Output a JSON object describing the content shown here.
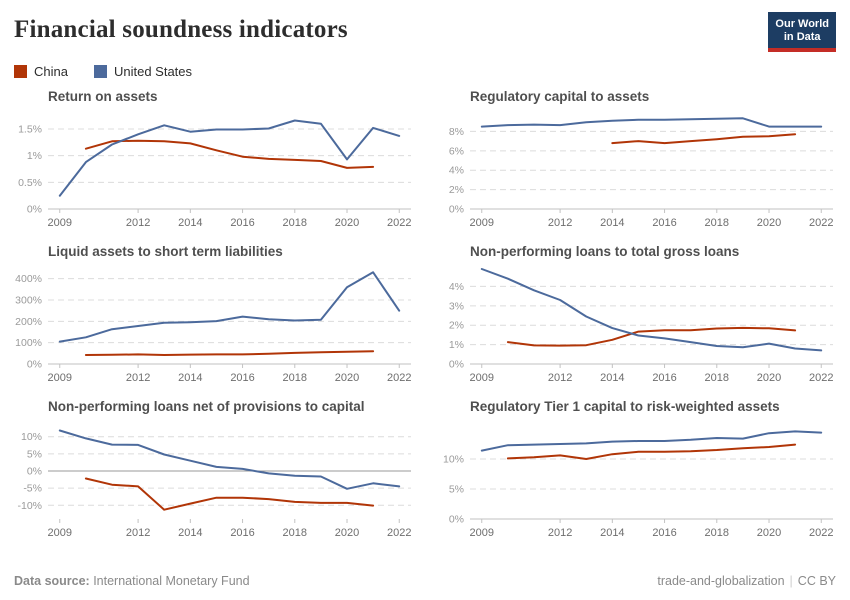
{
  "header": {
    "title": "Financial soundness indicators",
    "logo": {
      "line1": "Our World",
      "line2": "in Data",
      "bg_color": "#1d3d63",
      "accent_color": "#c42d26"
    }
  },
  "legend": {
    "items": [
      {
        "key": "china",
        "label": "China",
        "color": "#b13507"
      },
      {
        "key": "united-states",
        "label": "United States",
        "color": "#4c6a9c"
      }
    ]
  },
  "colors": {
    "china": "#b13507",
    "united_states": "#4c6a9c",
    "gridline": "#dcdcdc",
    "axis": "#c2c2c2",
    "zero_line": "#9a9a9a",
    "ytick_label": "#9a9a9a",
    "xtick_label": "#6e6e6e"
  },
  "chart_data": [
    {
      "type": "line",
      "title": "Return on assets",
      "xlim": [
        2008.55,
        2022.45
      ],
      "xticks": [
        2009,
        2012,
        2014,
        2016,
        2018,
        2020,
        2022
      ],
      "ylim": [
        0,
        1.8
      ],
      "yticks": [
        0,
        0.5,
        1,
        1.5
      ],
      "ytick_labels": [
        "0%",
        "0.5%",
        "1%",
        "1.5%"
      ],
      "zero_solid": false,
      "series": [
        {
          "name": "China",
          "key": "china",
          "color": "#b13507",
          "x": [
            2010,
            2011,
            2012,
            2013,
            2014,
            2015,
            2016,
            2017,
            2018,
            2019,
            2020,
            2021
          ],
          "y": [
            1.13,
            1.27,
            1.28,
            1.27,
            1.23,
            1.1,
            0.98,
            0.94,
            0.92,
            0.9,
            0.77,
            0.79
          ]
        },
        {
          "name": "United States",
          "key": "united-states",
          "color": "#4c6a9c",
          "x": [
            2009,
            2010,
            2011,
            2012,
            2013,
            2014,
            2015,
            2016,
            2017,
            2018,
            2019,
            2020,
            2021,
            2022
          ],
          "y": [
            0.25,
            0.88,
            1.21,
            1.4,
            1.57,
            1.45,
            1.49,
            1.49,
            1.51,
            1.66,
            1.6,
            0.93,
            1.52,
            1.37
          ]
        }
      ]
    },
    {
      "type": "line",
      "title": "Regulatory capital to assets",
      "xlim": [
        2008.55,
        2022.45
      ],
      "xticks": [
        2009,
        2012,
        2014,
        2016,
        2018,
        2020,
        2022
      ],
      "ylim": [
        0,
        9.9
      ],
      "yticks": [
        0,
        2,
        4,
        6,
        8
      ],
      "ytick_labels": [
        "0%",
        "2%",
        "4%",
        "6%",
        "8%"
      ],
      "zero_solid": false,
      "series": [
        {
          "name": "China",
          "key": "china",
          "color": "#b13507",
          "x": [
            2014,
            2015,
            2016,
            2017,
            2018,
            2019,
            2020,
            2021
          ],
          "y": [
            6.8,
            7.0,
            6.8,
            7.0,
            7.2,
            7.45,
            7.5,
            7.7
          ]
        },
        {
          "name": "United States",
          "key": "united-states",
          "color": "#4c6a9c",
          "x": [
            2009,
            2010,
            2011,
            2012,
            2013,
            2014,
            2015,
            2016,
            2017,
            2018,
            2019,
            2020,
            2021,
            2022
          ],
          "y": [
            8.5,
            8.65,
            8.7,
            8.65,
            8.95,
            9.1,
            9.2,
            9.2,
            9.25,
            9.3,
            9.35,
            8.5,
            8.5,
            8.5
          ]
        }
      ]
    },
    {
      "type": "line",
      "title": "Liquid assets to short term liabilities",
      "xlim": [
        2008.55,
        2022.45
      ],
      "xticks": [
        2009,
        2012,
        2014,
        2016,
        2018,
        2020,
        2022
      ],
      "ylim": [
        0,
        450
      ],
      "yticks": [
        0,
        100,
        200,
        300,
        400
      ],
      "ytick_labels": [
        "0%",
        "100%",
        "200%",
        "300%",
        "400%"
      ],
      "zero_solid": false,
      "series": [
        {
          "name": "China",
          "key": "china",
          "color": "#b13507",
          "x": [
            2010,
            2011,
            2012,
            2013,
            2014,
            2015,
            2016,
            2017,
            2018,
            2019,
            2020,
            2021
          ],
          "y": [
            42,
            43,
            45,
            42,
            44,
            45,
            45,
            48,
            52,
            55,
            57,
            60
          ]
        },
        {
          "name": "United States",
          "key": "united-states",
          "color": "#4c6a9c",
          "x": [
            2009,
            2010,
            2011,
            2012,
            2013,
            2014,
            2015,
            2016,
            2017,
            2018,
            2019,
            2020,
            2021,
            2022
          ],
          "y": [
            105,
            125,
            163,
            178,
            193,
            196,
            201,
            222,
            210,
            204,
            207,
            360,
            430,
            250
          ]
        }
      ]
    },
    {
      "type": "line",
      "title": "Non-performing loans to total gross loans",
      "xlim": [
        2008.55,
        2022.45
      ],
      "xticks": [
        2009,
        2012,
        2014,
        2016,
        2018,
        2020,
        2022
      ],
      "ylim": [
        0,
        4.95
      ],
      "yticks": [
        0,
        1,
        2,
        3,
        4
      ],
      "ytick_labels": [
        "0%",
        "1%",
        "2%",
        "3%",
        "4%"
      ],
      "zero_solid": false,
      "series": [
        {
          "name": "China",
          "key": "china",
          "color": "#b13507",
          "x": [
            2010,
            2011,
            2012,
            2013,
            2014,
            2015,
            2016,
            2017,
            2018,
            2019,
            2020,
            2021
          ],
          "y": [
            1.13,
            0.96,
            0.95,
            0.97,
            1.25,
            1.67,
            1.74,
            1.74,
            1.83,
            1.86,
            1.84,
            1.73
          ]
        },
        {
          "name": "United States",
          "key": "united-states",
          "color": "#4c6a9c",
          "x": [
            2009,
            2010,
            2011,
            2012,
            2013,
            2014,
            2015,
            2016,
            2017,
            2018,
            2019,
            2020,
            2021,
            2022
          ],
          "y": [
            4.9,
            4.4,
            3.8,
            3.3,
            2.45,
            1.85,
            1.47,
            1.32,
            1.13,
            0.93,
            0.86,
            1.05,
            0.8,
            0.7
          ]
        }
      ]
    },
    {
      "type": "line",
      "title": "Non-performing loans net of provisions to capital",
      "xlim": [
        2008.55,
        2022.45
      ],
      "xticks": [
        2009,
        2012,
        2014,
        2016,
        2018,
        2020,
        2022
      ],
      "ylim": [
        -14,
        14
      ],
      "yticks": [
        -10,
        -5,
        0,
        5,
        10
      ],
      "ytick_labels": [
        "-10%",
        "-5%",
        "0%",
        "5%",
        "10%"
      ],
      "zero_solid": true,
      "baseline": false,
      "series": [
        {
          "name": "China",
          "key": "china",
          "color": "#b13507",
          "x": [
            2010,
            2011,
            2012,
            2013,
            2014,
            2015,
            2016,
            2017,
            2018,
            2019,
            2020,
            2021
          ],
          "y": [
            -2.2,
            -4.0,
            -4.5,
            -11.3,
            -9.5,
            -7.8,
            -7.8,
            -8.2,
            -9.0,
            -9.3,
            -9.3,
            -10.1
          ]
        },
        {
          "name": "United States",
          "key": "united-states",
          "color": "#4c6a9c",
          "x": [
            2009,
            2010,
            2011,
            2012,
            2013,
            2014,
            2015,
            2016,
            2017,
            2018,
            2019,
            2020,
            2021,
            2022
          ],
          "y": [
            11.8,
            9.5,
            7.7,
            7.6,
            4.8,
            3.0,
            1.2,
            0.6,
            -0.7,
            -1.4,
            -1.6,
            -5.2,
            -3.6,
            -4.5
          ]
        }
      ]
    },
    {
      "type": "line",
      "title": "Regulatory Tier 1 capital to risk-weighted assets",
      "xlim": [
        2008.55,
        2022.45
      ],
      "xticks": [
        2009,
        2012,
        2014,
        2016,
        2018,
        2020,
        2022
      ],
      "ylim": [
        0,
        16
      ],
      "yticks": [
        0,
        5,
        10
      ],
      "ytick_labels": [
        "0%",
        "5%",
        "10%"
      ],
      "zero_solid": false,
      "series": [
        {
          "name": "China",
          "key": "china",
          "color": "#b13507",
          "x": [
            2010,
            2011,
            2012,
            2013,
            2014,
            2015,
            2016,
            2017,
            2018,
            2019,
            2020,
            2021
          ],
          "y": [
            10.1,
            10.3,
            10.6,
            10.0,
            10.8,
            11.2,
            11.2,
            11.3,
            11.5,
            11.8,
            12.0,
            12.4
          ]
        },
        {
          "name": "United States",
          "key": "united-states",
          "color": "#4c6a9c",
          "x": [
            2009,
            2010,
            2011,
            2012,
            2013,
            2014,
            2015,
            2016,
            2017,
            2018,
            2019,
            2020,
            2021,
            2022
          ],
          "y": [
            11.4,
            12.3,
            12.4,
            12.5,
            12.6,
            12.9,
            13.0,
            13.0,
            13.2,
            13.5,
            13.4,
            14.3,
            14.6,
            14.4
          ]
        }
      ]
    }
  ],
  "footer": {
    "source_label": "Data source:",
    "source_value": " International Monetary Fund",
    "slug": "trade-and-globalization",
    "separator": "|",
    "license": "CC BY"
  }
}
